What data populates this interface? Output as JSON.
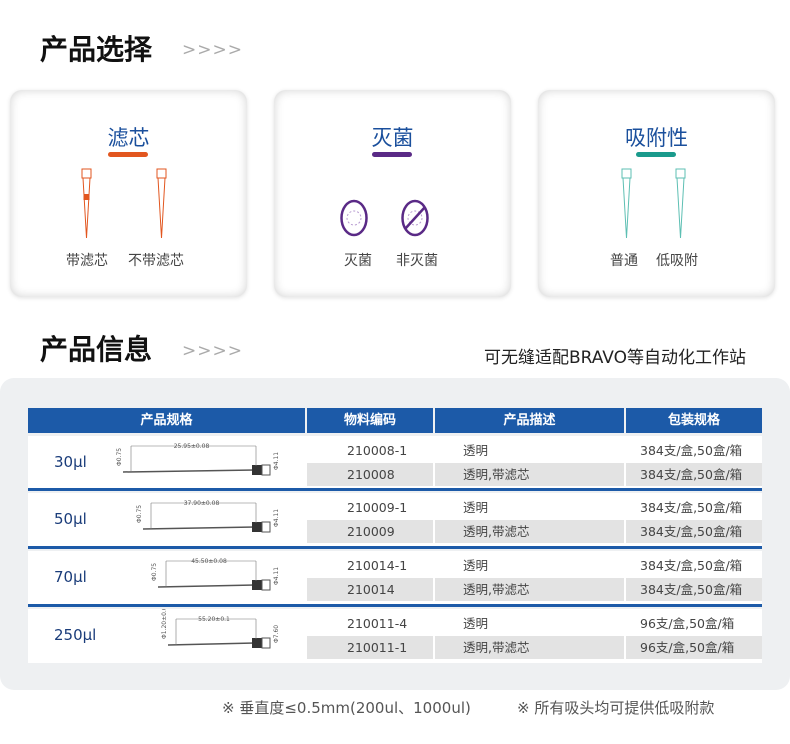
{
  "section1": {
    "title": "产品选择",
    "arrows": ">>>>"
  },
  "cards": [
    {
      "title": "滤芯",
      "color": "#e2561f",
      "labels": [
        "带滤芯",
        "不带滤芯"
      ]
    },
    {
      "title": "灭菌",
      "color": "#5a2a86",
      "labels": [
        "灭菌",
        "非灭菌"
      ]
    },
    {
      "title": "吸附性",
      "color": "#1a9a8c",
      "labels": [
        "普通",
        "低吸附"
      ]
    }
  ],
  "section2": {
    "title": "产品信息",
    "arrows": ">>>>",
    "subtitle": "可无缝适配BRAVO等自动化工作站"
  },
  "table": {
    "headers": [
      "产品规格",
      "物料编码",
      "产品描述",
      "包装规格"
    ],
    "groups": [
      {
        "volume": "30μl",
        "dims": [
          "25.95±0.08",
          "Φ0.75",
          "Φ4.11"
        ],
        "rows": [
          [
            "210008-1",
            "透明",
            "384支/盒,50盒/箱"
          ],
          [
            "210008",
            "透明,带滤芯",
            "384支/盒,50盒/箱"
          ]
        ]
      },
      {
        "volume": "50μl",
        "dims": [
          "37.90±0.08",
          "Φ0.75",
          "Φ4.11"
        ],
        "rows": [
          [
            "210009-1",
            "透明",
            "384支/盒,50盒/箱"
          ],
          [
            "210009",
            "透明,带滤芯",
            "384支/盒,50盒/箱"
          ]
        ]
      },
      {
        "volume": "70μl",
        "dims": [
          "45.50±0.08",
          "Φ0.75",
          "Φ4.11"
        ],
        "rows": [
          [
            "210014-1",
            "透明",
            "384支/盒,50盒/箱"
          ],
          [
            "210014",
            "透明,带滤芯",
            "384支/盒,50盒/箱"
          ]
        ]
      },
      {
        "volume": "250μl",
        "dims": [
          "55.20±0.1",
          "Φ1.20±0.05",
          "Φ7.60"
        ],
        "rows": [
          [
            "210011-4",
            "透明",
            "96支/盒,50盒/箱"
          ],
          [
            "210011-1",
            "透明,带滤芯",
            "96支/盒,50盒/箱"
          ]
        ]
      }
    ]
  },
  "footer": [
    "※  垂直度≤0.5mm(200ul、1000ul)",
    "※  所有吸头均可提供低吸附款"
  ]
}
